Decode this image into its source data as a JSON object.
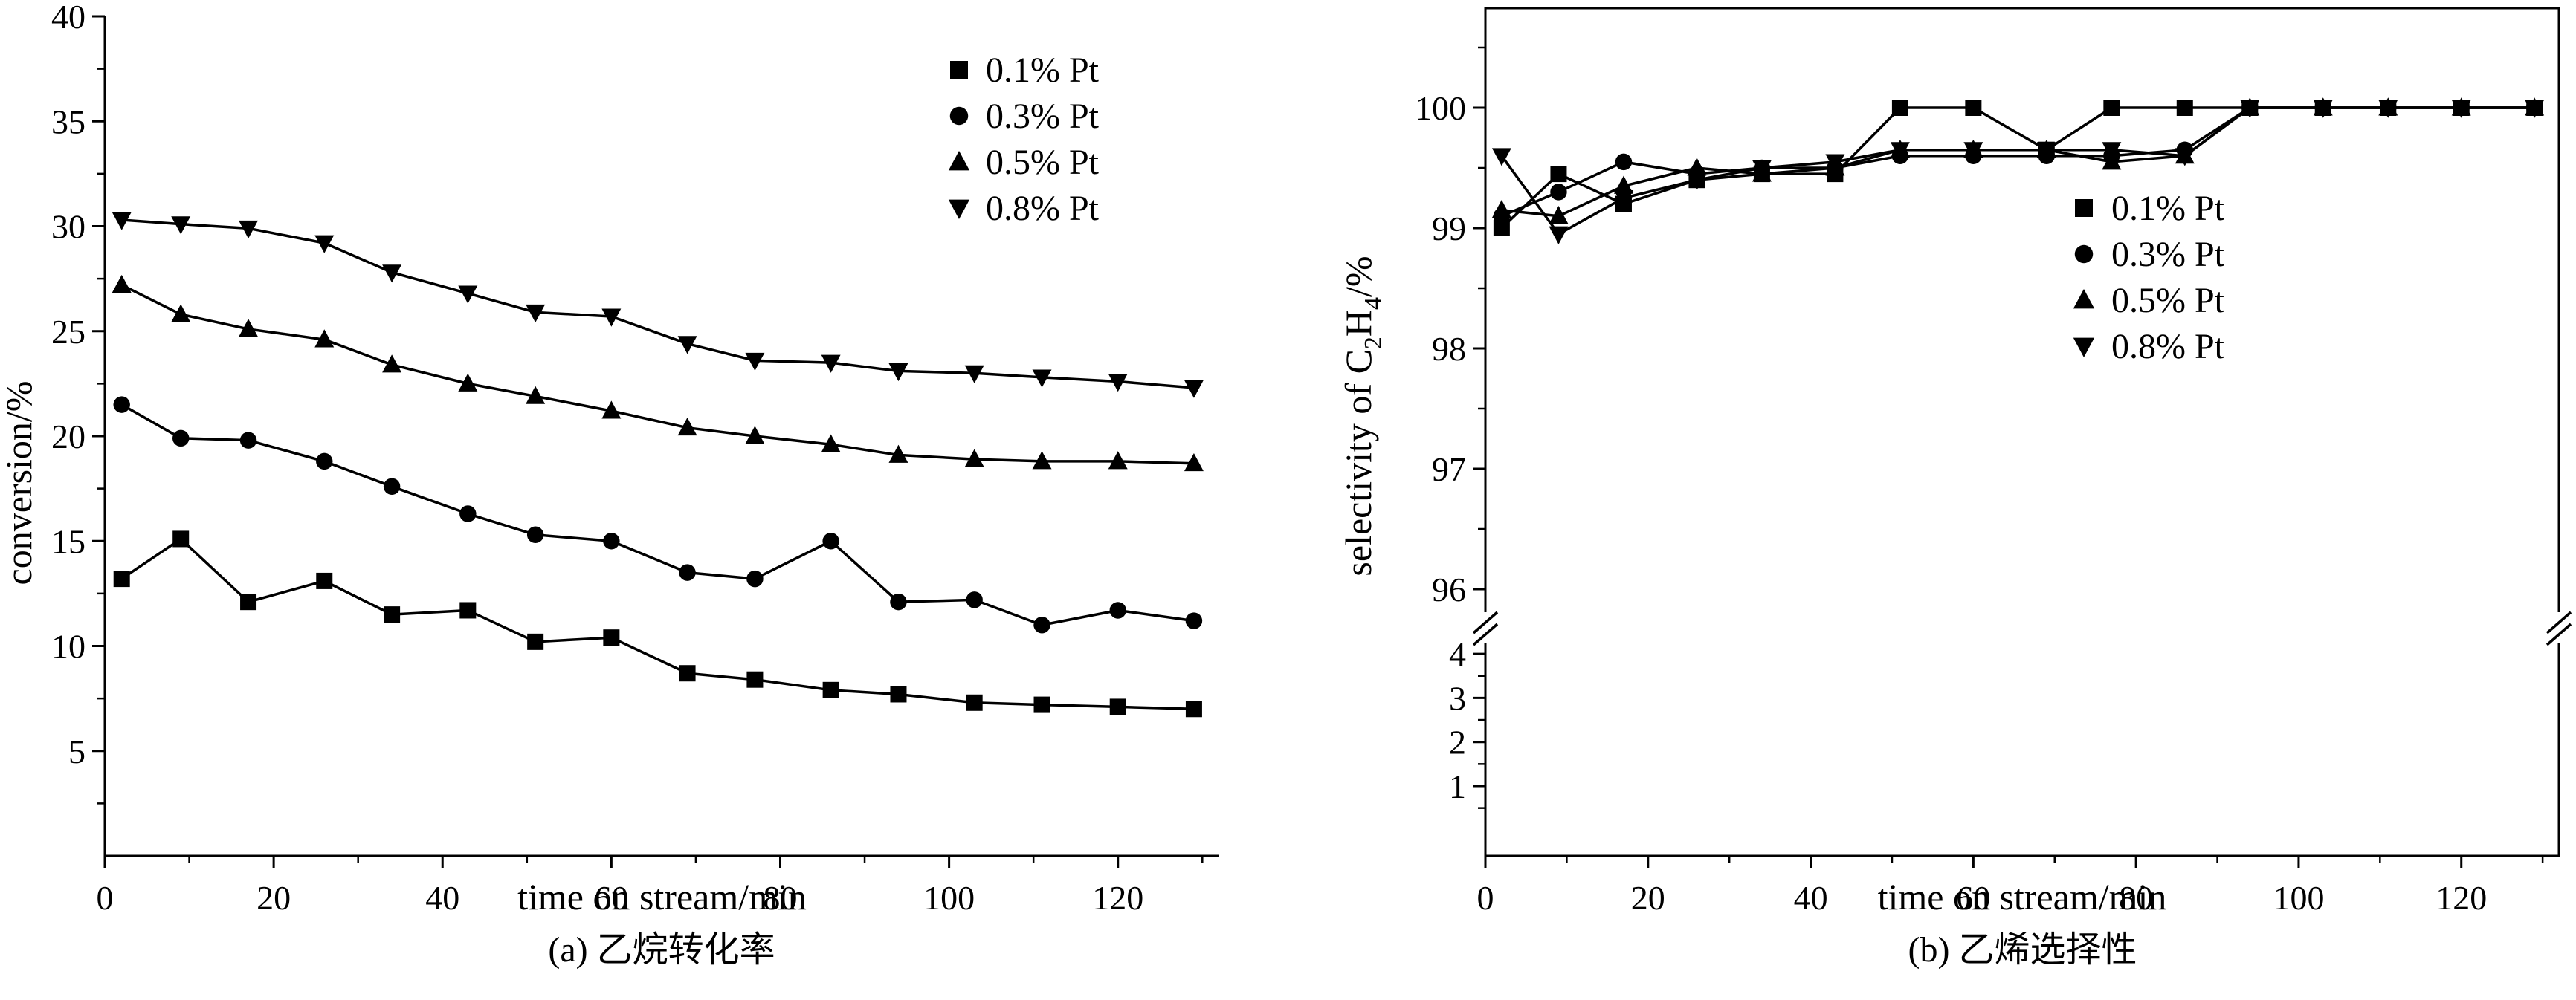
{
  "figure_background": "#ffffff",
  "line_color": "#000000",
  "chart_data": [
    {
      "type": "line",
      "title": "(a) 乙烷转化率",
      "xlabel": "time on stream/min",
      "ylabel": "conversion/%",
      "xlim": [
        0,
        132
      ],
      "ylim": [
        0,
        40
      ],
      "x_ticks": [
        0,
        20,
        40,
        60,
        80,
        100,
        120
      ],
      "y_ticks": [
        5,
        10,
        15,
        20,
        25,
        30,
        35,
        40
      ],
      "grid": false,
      "legend_position": "top-right-inside",
      "x": [
        2,
        9,
        17,
        26,
        34,
        43,
        51,
        60,
        69,
        77,
        86,
        94,
        103,
        111,
        120,
        129
      ],
      "series": [
        {
          "name": "0.1% Pt",
          "marker": "square",
          "values": [
            13.2,
            15.1,
            12.1,
            13.1,
            11.5,
            11.7,
            10.2,
            10.4,
            8.7,
            8.4,
            7.9,
            7.7,
            7.3,
            7.2,
            7.1,
            7.0
          ]
        },
        {
          "name": "0.3% Pt",
          "marker": "circle",
          "values": [
            21.5,
            19.9,
            19.8,
            18.8,
            17.6,
            16.3,
            15.3,
            15.0,
            13.5,
            13.2,
            15.0,
            12.1,
            12.2,
            11.0,
            11.7,
            11.2
          ]
        },
        {
          "name": "0.5% Pt",
          "marker": "triangle-up",
          "values": [
            27.2,
            25.8,
            25.1,
            24.6,
            23.4,
            22.5,
            21.9,
            21.2,
            20.4,
            20.0,
            19.6,
            19.1,
            18.9,
            18.8,
            18.8,
            18.7
          ]
        },
        {
          "name": "0.8% Pt",
          "marker": "triangle-down",
          "values": [
            30.3,
            30.1,
            29.9,
            29.2,
            27.8,
            26.8,
            25.9,
            25.7,
            24.4,
            23.6,
            23.5,
            23.1,
            23.0,
            22.8,
            22.6,
            22.3
          ]
        }
      ]
    },
    {
      "type": "line",
      "title": "(b) 乙烯选择性",
      "xlabel": "time on stream/min",
      "ylabel": "selectivity of C2H4/%",
      "ylabel_parts": [
        {
          "t": "selectivity of C"
        },
        {
          "s": "2"
        },
        {
          "t": "H"
        },
        {
          "s": "4"
        },
        {
          "t": "/%"
        }
      ],
      "xlim": [
        0,
        132
      ],
      "y_axis_break": true,
      "y_top_ticks": [
        96,
        97,
        98,
        99,
        100
      ],
      "y_bottom_ticks": [
        1,
        2,
        3,
        4
      ],
      "x_ticks": [
        0,
        20,
        40,
        60,
        80,
        100,
        120
      ],
      "grid": false,
      "legend_position": "right-inside",
      "x": [
        2,
        9,
        17,
        26,
        34,
        43,
        51,
        60,
        69,
        77,
        86,
        94,
        103,
        111,
        120,
        129
      ],
      "series": [
        {
          "name": "0.1% Pt",
          "marker": "square",
          "values": [
            99.0,
            99.45,
            99.2,
            99.4,
            99.45,
            99.45,
            100.0,
            100.0,
            99.65,
            100.0,
            100.0,
            100.0,
            100.0,
            100.0,
            100.0,
            100.0
          ]
        },
        {
          "name": "0.3% Pt",
          "marker": "circle",
          "values": [
            99.1,
            99.3,
            99.55,
            99.45,
            99.5,
            99.5,
            99.6,
            99.6,
            99.6,
            99.6,
            99.65,
            100.0,
            100.0,
            100.0,
            100.0,
            100.0
          ]
        },
        {
          "name": "0.5% Pt",
          "marker": "triangle-up",
          "values": [
            99.15,
            99.1,
            99.35,
            99.5,
            99.45,
            99.5,
            99.65,
            99.65,
            99.65,
            99.55,
            99.6,
            100.0,
            100.0,
            100.0,
            100.0,
            100.0
          ]
        },
        {
          "name": "0.8% Pt",
          "marker": "triangle-down",
          "values": [
            99.6,
            98.95,
            99.25,
            99.4,
            99.5,
            99.55,
            99.65,
            99.65,
            99.65,
            99.65,
            99.6,
            100.0,
            100.0,
            100.0,
            100.0,
            100.0
          ]
        }
      ]
    }
  ]
}
